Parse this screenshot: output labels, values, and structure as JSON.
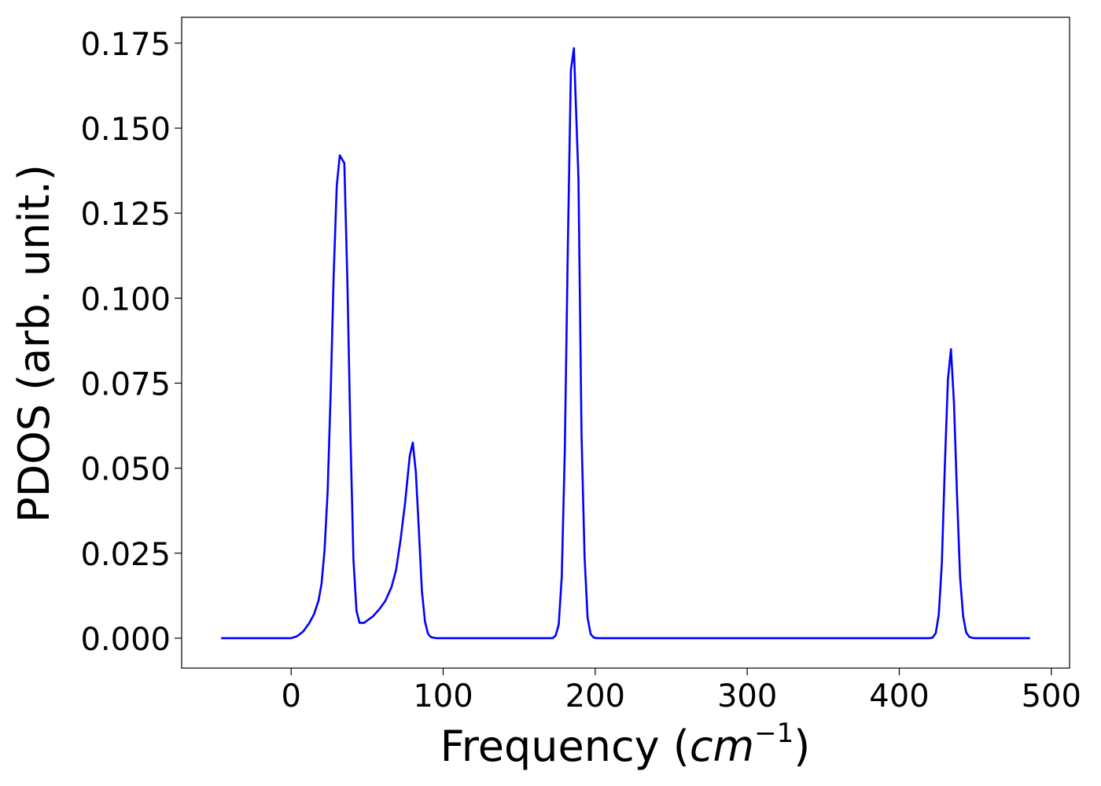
{
  "chart_data": {
    "type": "line",
    "title": "",
    "xlabel_prefix": "Frequency (",
    "xlabel_var": "cm",
    "xlabel_sup": "−1",
    "xlabel_suffix": ")",
    "ylabel": "PDOS (arb. unit.)",
    "xlim": [
      -72,
      512
    ],
    "ylim": [
      -0.0088,
      0.1826
    ],
    "xticks": [
      0,
      100,
      200,
      300,
      400,
      500
    ],
    "yticks": [
      0.0,
      0.025,
      0.05,
      0.075,
      0.1,
      0.125,
      0.15,
      0.175
    ],
    "xtick_labels": [
      "0",
      "100",
      "200",
      "300",
      "400",
      "500"
    ],
    "ytick_labels": [
      "0.000",
      "0.025",
      "0.050",
      "0.075",
      "0.100",
      "0.125",
      "0.150",
      "0.175"
    ],
    "grid": false,
    "series": [
      {
        "color": "#0000ff",
        "x": [
          -46,
          0,
          4,
          8,
          12,
          15,
          18,
          20,
          22,
          24,
          26,
          28,
          30,
          32,
          35,
          37,
          39,
          41,
          43,
          45,
          48,
          51,
          54,
          58,
          62,
          66,
          69,
          72,
          75,
          78,
          80,
          82,
          84,
          86,
          88,
          90,
          92,
          94,
          96,
          100,
          172,
          174,
          176,
          178,
          180,
          182,
          184,
          186,
          189,
          191,
          193,
          195,
          197,
          199,
          201,
          203,
          206,
          420,
          422,
          424,
          426,
          428,
          430,
          432,
          434,
          436,
          438,
          440,
          442,
          444,
          446,
          448,
          450,
          452,
          454,
          460,
          486
        ],
        "y": [
          0.0,
          0.0,
          0.0006,
          0.002,
          0.0045,
          0.007,
          0.011,
          0.016,
          0.026,
          0.043,
          0.072,
          0.107,
          0.133,
          0.142,
          0.1397,
          0.105,
          0.06,
          0.023,
          0.008,
          0.0045,
          0.0045,
          0.0055,
          0.0065,
          0.0085,
          0.011,
          0.015,
          0.02,
          0.029,
          0.04,
          0.0535,
          0.0575,
          0.049,
          0.032,
          0.014,
          0.005,
          0.0013,
          0.0003,
          0.0001,
          0.0,
          0.0,
          0.0,
          0.0008,
          0.004,
          0.018,
          0.055,
          0.115,
          0.167,
          0.1735,
          0.135,
          0.06,
          0.024,
          0.006,
          0.0012,
          0.0002,
          0.0,
          0.0,
          0.0,
          0.0,
          0.0002,
          0.0015,
          0.007,
          0.022,
          0.051,
          0.076,
          0.085,
          0.069,
          0.042,
          0.018,
          0.0065,
          0.0017,
          0.0004,
          0.0001,
          0.0,
          0.0,
          0.0,
          0.0,
          0.0
        ]
      }
    ]
  }
}
